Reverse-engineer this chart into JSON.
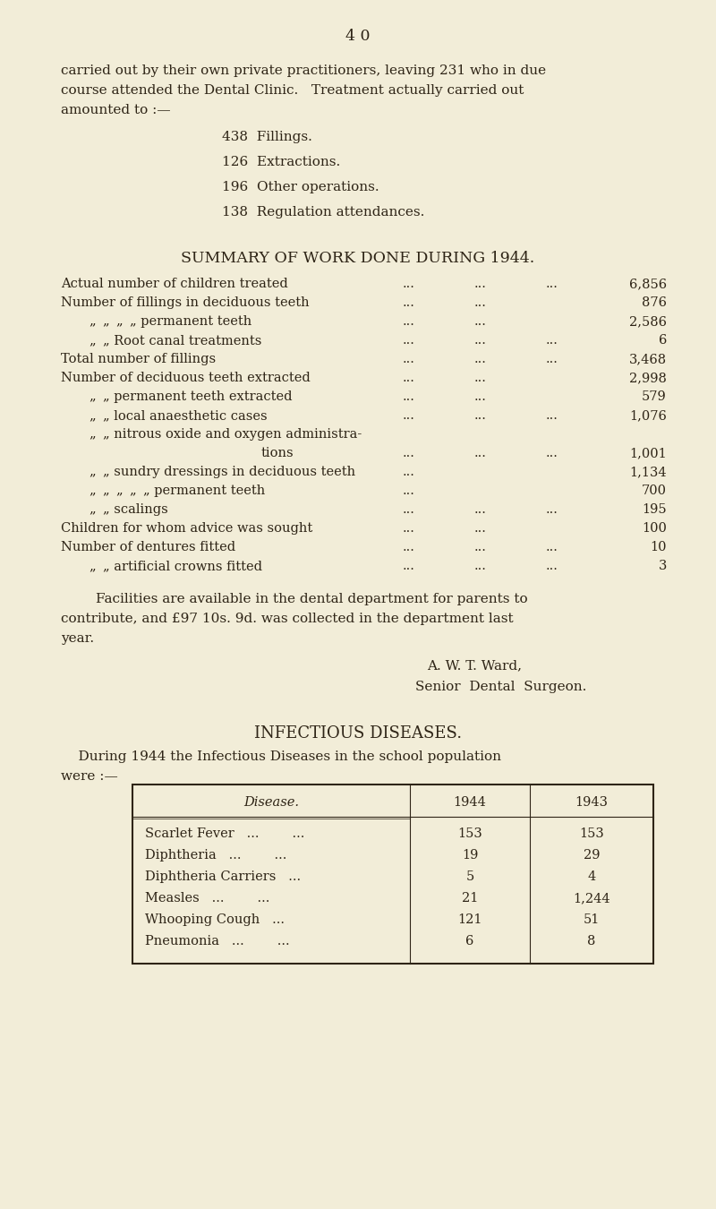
{
  "bg_color": "#f2edd8",
  "text_color": "#2e2416",
  "page_number": "4 0",
  "intro_line1": "carried out by their own private practitioners, leaving 231 who in due",
  "intro_line2": "course attended the Dental Clinic.   Treatment actually carried out",
  "intro_line3": "amounted to :—",
  "list_items": [
    "438  Fillings.",
    "126  Extractions.",
    "196  Other operations.",
    "138  Regulation attendances."
  ],
  "summary_heading": "SUMMARY OF WORK DONE DURING 1944.",
  "summary_rows": [
    {
      "label": "Actual number of children treated",
      "d1": "...",
      "d2": "...",
      "d3": "...",
      "val": "6,856",
      "indent": false
    },
    {
      "label": "Number of fillings in deciduous teeth",
      "d1": "...",
      "d2": "...",
      "d3": "",
      "val": "876",
      "indent": false
    },
    {
      "label": "„ „ „ „ permanent teeth",
      "d1": "...",
      "d2": "...",
      "d3": "",
      "val": "2,586",
      "indent": true
    },
    {
      "label": "„ „ Root canal treatments",
      "d1": "...",
      "d2": "...",
      "d3": "...",
      "val": "6",
      "indent": true
    },
    {
      "label": "Total number of fillings",
      "d1": "...",
      "d2": "...",
      "d3": "...",
      "val": "3,468",
      "indent": false
    },
    {
      "label": "Number of deciduous teeth extracted",
      "d1": "...",
      "d2": "...",
      "d3": "",
      "val": "2,998",
      "indent": false
    },
    {
      "label": "„ „ permanent teeth extracted",
      "d1": "...",
      "d2": "...",
      "d3": "",
      "val": "579",
      "indent": true
    },
    {
      "label": "„ „ local anaesthetic cases",
      "d1": "...",
      "d2": "...",
      "d3": "...",
      "val": "1,076",
      "indent": true
    },
    {
      "label": "„ „ nitrous oxide and oxygen administra-",
      "d1": "",
      "d2": "",
      "d3": "",
      "val": "",
      "indent": true
    },
    {
      "label": "tions",
      "d1": "...",
      "d2": "...",
      "d3": "...",
      "val": "1,001",
      "indent": false,
      "tions": true
    },
    {
      "label": "„ „ sundry dressings in deciduous teeth",
      "d1": "...",
      "d2": "",
      "d3": "",
      "val": "1,134",
      "indent": true
    },
    {
      "label": "„ „ „ „ „ permanent teeth",
      "d1": "...",
      "d2": "",
      "d3": "",
      "val": "700",
      "indent": true
    },
    {
      "label": "„ „ scalings",
      "d1": "...",
      "d2": "...",
      "d3": "...",
      "val": "195",
      "indent": true
    },
    {
      "label": "Children for whom advice was sought",
      "d1": "...",
      "d2": "...",
      "d3": "",
      "val": "100",
      "indent": false
    },
    {
      "label": "Number of dentures fitted",
      "d1": "...",
      "d2": "...",
      "d3": "...",
      "val": "10",
      "indent": false
    },
    {
      "label": "„ „ artificial crowns fitted",
      "d1": "...",
      "d2": "...",
      "d3": "...",
      "val": "3",
      "indent": true
    }
  ],
  "facilities_line1": "        Facilities are available in the dental department for parents to",
  "facilities_line2": "contribute, and £97 10s. 9d. was collected in the department last",
  "facilities_line3": "year.",
  "author_name": "A. W. T. Ward,",
  "author_title": "Senior  Dental  Surgeon.",
  "infectious_heading": "INFECTIOUS DISEASES.",
  "inf_intro_line1": "    During 1944 the Infectious Diseases in the school population",
  "inf_intro_line2": "were :—",
  "table_header_disease": "Disease.",
  "table_header_1944": "1944",
  "table_header_1943": "1943",
  "table_rows": [
    [
      "Scarlet Fever   ...        ...",
      "153",
      "153"
    ],
    [
      "Diphtheria   ...        ...",
      "19",
      "29"
    ],
    [
      "Diphtheria Carriers   ...",
      "5",
      "4"
    ],
    [
      "Measles   ...        ...",
      "21",
      "1,244"
    ],
    [
      "Whooping Cough   ...",
      "121",
      "51"
    ],
    [
      "Pneumonia   ...        ...",
      "6",
      "8"
    ]
  ],
  "fs": 11.0,
  "fs_heading": 12.5,
  "fs_small": 10.5
}
